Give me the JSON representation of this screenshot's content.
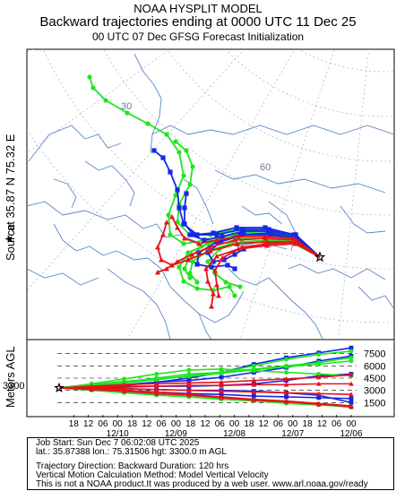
{
  "header": {
    "model": "NOAA HYSPLIT MODEL",
    "title": "Backward trajectories ending at 0000 UTC 11 Dec 25",
    "subtitle": "00 UTC 07 Dec    GFSG  Forecast Initialization"
  },
  "source_label": {
    "word": "Source",
    "at_text": "at    35.87 N   75.32 E"
  },
  "colors": {
    "red": "#e8121c",
    "blue": "#1428e6",
    "green": "#1ee61e",
    "map_line": "#5a87c8",
    "grid": "#9aa6b6"
  },
  "chart_data": [
    {
      "type": "line",
      "panel": "map",
      "projection": "polar stereographic",
      "grid_labels": [
        "30",
        "60"
      ],
      "source": {
        "lat": 35.87,
        "lon": 75.32,
        "marker": "star"
      },
      "series_groups": [
        {
          "color": "green",
          "count": 6
        },
        {
          "color": "blue",
          "count": 5
        },
        {
          "color": "red",
          "count": 5
        }
      ]
    },
    {
      "type": "line",
      "panel": "vertical",
      "ylabel": "Meters AGL",
      "yticks": [
        1500,
        3000,
        4500,
        6000,
        7500
      ],
      "ylim": [
        0,
        9000
      ],
      "start_height_label": "3300",
      "start_height": 3300,
      "x_hour_labels": [
        "18",
        "12",
        "06",
        "00",
        "18",
        "12",
        "06",
        "00",
        "18",
        "12",
        "06",
        "00",
        "18",
        "12",
        "06",
        "00",
        "18",
        "12",
        "06",
        "00"
      ],
      "x_date_labels": [
        "12/10",
        "12/09",
        "12/08",
        "12/07",
        "12/06"
      ],
      "duration_hours": 120
    }
  ],
  "footer": {
    "line1": "Job Start: Sun Dec  7 06:02:08 UTC 2025",
    "line2": "lat.: 35.87388   lon.: 75.31506   hgt: 3300.0 m AGL",
    "line3": "Trajectory Direction: Backward       Duration: 120 hrs",
    "line4": "Vertical Motion Calculation Method: Model Vertical Velocity",
    "line5": "This is not a NOAA product.It was produced by a web user. www.arl.noaa.gov/ready"
  }
}
